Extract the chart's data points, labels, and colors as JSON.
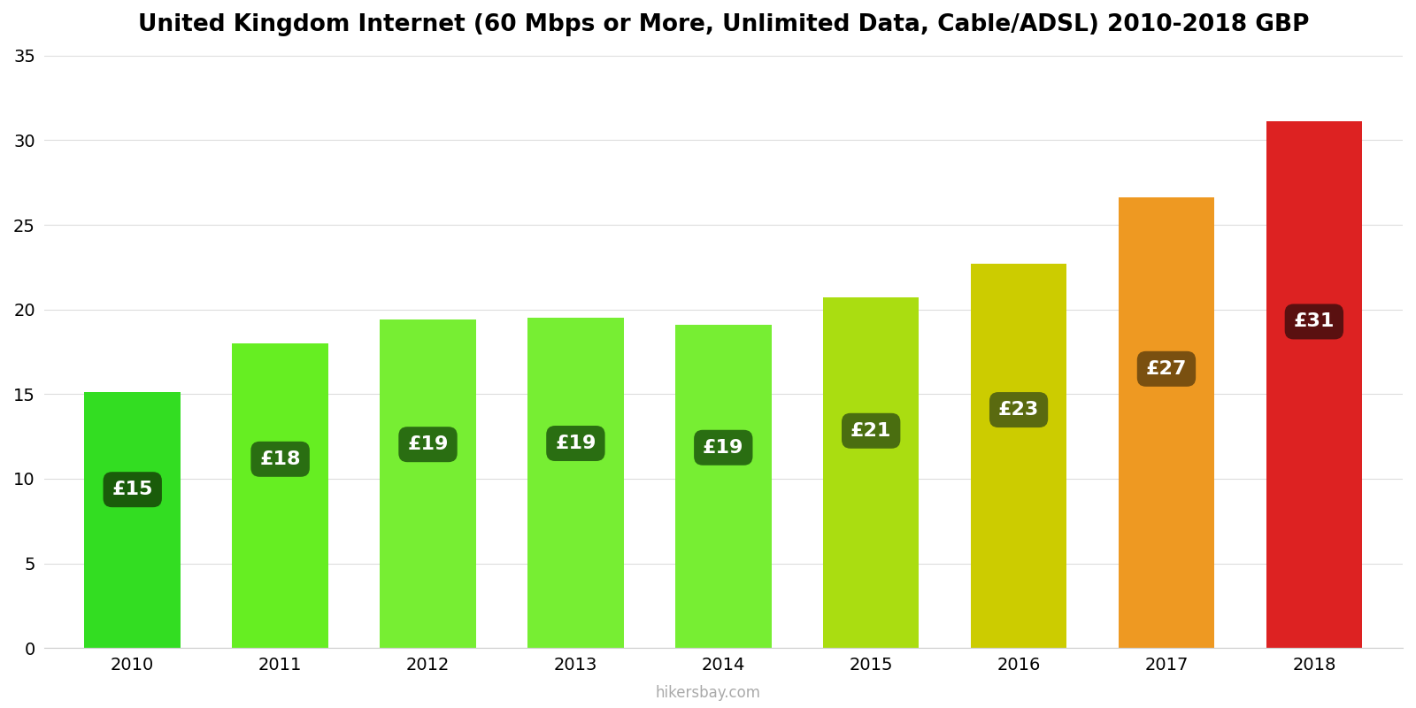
{
  "years": [
    2010,
    2011,
    2012,
    2013,
    2014,
    2015,
    2016,
    2017,
    2018
  ],
  "values": [
    15.1,
    18.0,
    19.4,
    19.5,
    19.1,
    20.7,
    22.7,
    26.6,
    31.1
  ],
  "labels": [
    "£15",
    "£18",
    "£19",
    "£19",
    "£19",
    "£21",
    "£23",
    "£27",
    "£31"
  ],
  "bar_colors": [
    "#33dd22",
    "#66ee22",
    "#77ee33",
    "#77ee33",
    "#77ee33",
    "#aadd11",
    "#cccc00",
    "#ee9922",
    "#dd2222"
  ],
  "label_box_colors": [
    "#1a5c0a",
    "#2a6e12",
    "#2a6e12",
    "#2a6e12",
    "#2a6e12",
    "#4a6e10",
    "#5a6a10",
    "#7a5010",
    "#5a1010"
  ],
  "label_text_color": "#ffffff",
  "title": "United Kingdom Internet (60 Mbps or More, Unlimited Data, Cable/ADSL) 2010-2018 GBP",
  "ylim": [
    0,
    35
  ],
  "yticks": [
    0,
    5,
    10,
    15,
    20,
    25,
    30,
    35
  ],
  "background_color": "#ffffff",
  "watermark": "hikersbay.com",
  "title_fontsize": 19,
  "tick_fontsize": 14,
  "label_fontsize": 16,
  "bar_width": 0.65
}
